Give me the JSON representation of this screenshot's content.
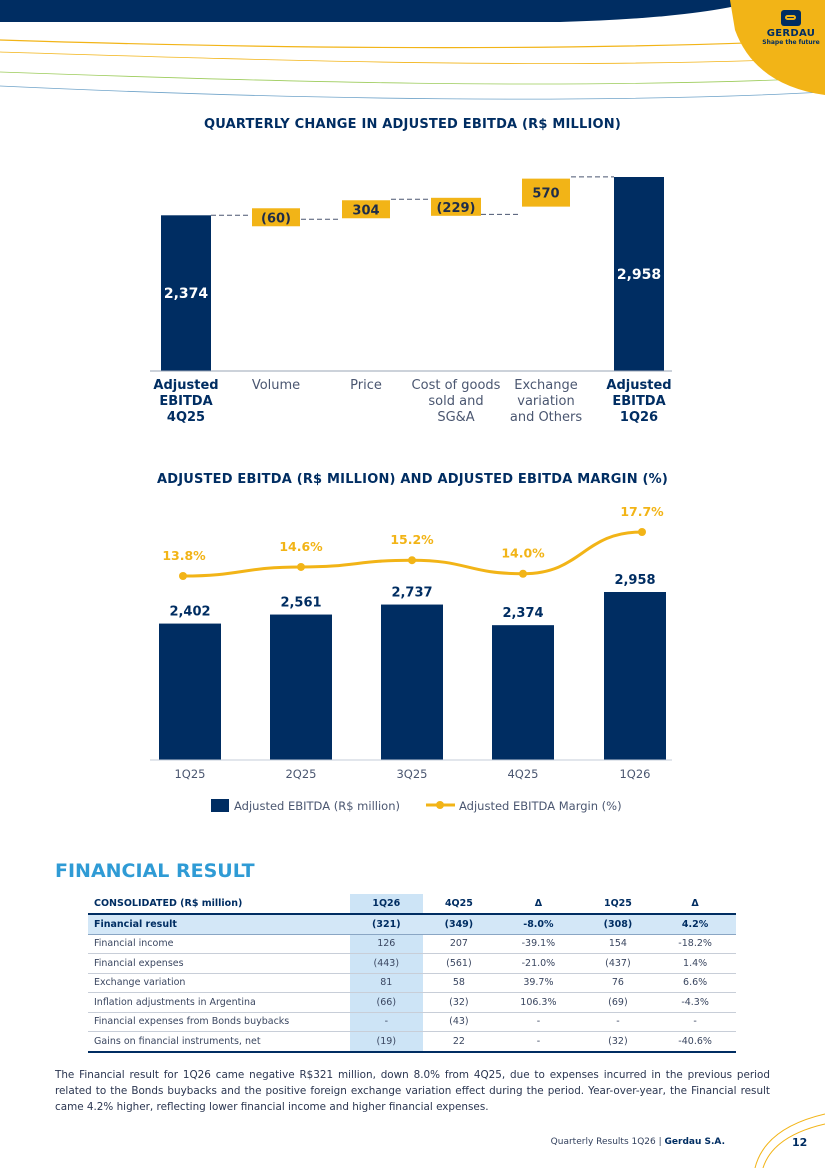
{
  "brand": {
    "name": "GERDAU",
    "tagline": "Shape the future",
    "navy": "#002d62",
    "yellow": "#f2b417",
    "blue": "#2f9bd5"
  },
  "chart_data": [
    {
      "type": "waterfall",
      "title": "QUARTERLY CHANGE IN ADJUSTED EBITDA (R$ MILLION)",
      "categories": [
        "Adjusted EBITDA 4Q25",
        "Volume",
        "Price",
        "Cost of goods sold and SG&A",
        "Exchange variation and Others",
        "Adjusted EBITDA 1Q26"
      ],
      "category_lines": [
        [
          "Adjusted",
          "EBITDA",
          "4Q25"
        ],
        [
          "Volume"
        ],
        [
          "Price"
        ],
        [
          "Cost of goods",
          "sold and",
          "SG&A"
        ],
        [
          "Exchange",
          "variation",
          "and Others"
        ],
        [
          "Adjusted",
          "EBITDA",
          "1Q26"
        ]
      ],
      "values": [
        2374,
        -60,
        304,
        -229,
        570,
        2958
      ],
      "labels": [
        "2,374",
        "(60)",
        "304",
        "(229)",
        "570",
        "2,958"
      ],
      "kinds": [
        "total",
        "delta",
        "delta",
        "delta",
        "delta",
        "total"
      ],
      "ylim": [
        0,
        3000
      ]
    },
    {
      "type": "bar+line",
      "title": "ADJUSTED EBITDA (R$ MILLION) AND ADJUSTED EBITDA MARGIN (%)",
      "categories": [
        "1Q25",
        "2Q25",
        "3Q25",
        "4Q25",
        "1Q26"
      ],
      "series": [
        {
          "name": "Adjusted EBITDA (R$ million)",
          "type": "bar",
          "values": [
            2402,
            2561,
            2737,
            2374,
            2958
          ],
          "labels": [
            "2,402",
            "2,561",
            "2,737",
            "2,374",
            "2,958"
          ]
        },
        {
          "name": "Adjusted EBITDA Margin (%)",
          "type": "line",
          "values": [
            13.8,
            14.6,
            15.2,
            14.0,
            17.7
          ],
          "labels": [
            "13.8%",
            "14.6%",
            "15.2%",
            "14.0%",
            "17.7%"
          ]
        }
      ],
      "legend": "bottom"
    }
  ],
  "section": {
    "title": "FINANCIAL RESULT"
  },
  "table": {
    "headers": [
      "CONSOLIDATED (R$ million)",
      "1Q26",
      "4Q25",
      "Δ",
      "1Q25",
      "Δ"
    ],
    "rows": [
      [
        "Financial result",
        "(321)",
        "(349)",
        "-8.0%",
        "(308)",
        "4.2%"
      ],
      [
        "Financial income",
        "126",
        "207",
        "-39.1%",
        "154",
        "-18.2%"
      ],
      [
        "Financial expenses",
        "(443)",
        "(561)",
        "-21.0%",
        "(437)",
        "1.4%"
      ],
      [
        "Exchange variation",
        "81",
        "58",
        "39.7%",
        "76",
        "6.6%"
      ],
      [
        "Inflation adjustments in Argentina",
        "(66)",
        "(32)",
        "106.3%",
        "(69)",
        "-4.3%"
      ],
      [
        "Financial expenses from Bonds buybacks",
        "-",
        "(43)",
        "-",
        "-",
        "-"
      ],
      [
        "Gains on financial instruments, net",
        "(19)",
        "22",
        "-",
        "(32)",
        "-40.6%"
      ]
    ]
  },
  "body_text": "The Financial result for 1Q26 came negative R$321 million, down 8.0% from 4Q25, due to expenses incurred in the previous period related to the Bonds buybacks and the positive foreign exchange variation effect during the period. Year-over-year, the Financial result came 4.2% higher, reflecting lower financial income and higher financial expenses.",
  "footer": {
    "report": "Quarterly Results 1Q26",
    "separator": "|",
    "company": "Gerdau S.A.",
    "page": "12"
  }
}
